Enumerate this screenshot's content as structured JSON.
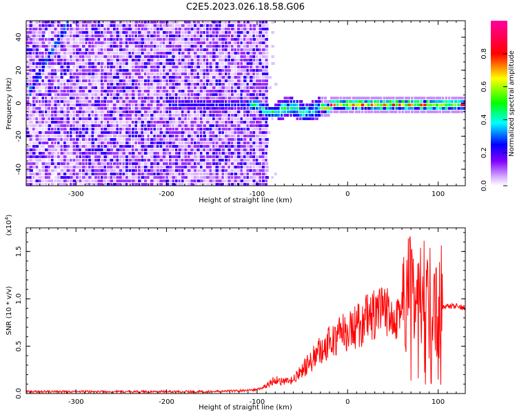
{
  "title": "C2E5.2023.026.18.58.G06",
  "colors": {
    "snr_line": "#ff0000",
    "frame": "#000000",
    "background": "#ffffff"
  },
  "chart_data": [
    {
      "type": "heatmap",
      "xlabel": "Height of straight line (km)",
      "ylabel": "Frequency (Hz)",
      "xlim": [
        -355,
        130
      ],
      "ylim": [
        -50,
        50
      ],
      "x_ticks": [
        -300,
        -200,
        -100,
        0,
        100
      ],
      "y_ticks": [
        -40,
        -20,
        0,
        20,
        40
      ],
      "colorbar": {
        "label": "Normalized spectral amplitude",
        "range": [
          0,
          1
        ],
        "ticks": [
          "0.0",
          "0.2",
          "0.4",
          "0.6",
          "0.8"
        ],
        "colormap": "rainbow (white→purple→blue→cyan→green→yellow→red→magenta)"
      },
      "features": [
        {
          "description": "noise",
          "x_range": [
            -355,
            -90
          ],
          "y_range": [
            -50,
            50
          ],
          "amplitude": 0.15
        },
        {
          "description": "carrier",
          "x_range": [
            -130,
            130
          ],
          "frequency_hz": 0,
          "amplitude": 0.9
        },
        {
          "description": "diagonal",
          "x_range": [
            -350,
            -310
          ],
          "y_range": [
            10,
            50
          ],
          "amplitude": 0.25
        }
      ]
    },
    {
      "type": "line",
      "xlabel": "Height of straight line (km)",
      "ylabel": "SNR (10 * v/v)",
      "y_multiplier": "(x10^4)",
      "y_multiplier_base": "(x10",
      "y_multiplier_exp": "4",
      "y_multiplier_close": ")",
      "xlim": [
        -355,
        130
      ],
      "ylim": [
        0,
        1.75
      ],
      "x_ticks": [
        -300,
        -200,
        -100,
        0,
        100
      ],
      "y_ticks": [
        "0.0",
        "0.5",
        "1.0",
        "1.5"
      ],
      "series": [
        {
          "x": [
            -355,
            -300,
            -250,
            -200,
            -150,
            -120,
            -100,
            -90,
            -80,
            -70,
            -60,
            -50,
            -40,
            -30,
            -20,
            -10,
            0,
            10,
            20,
            30,
            40,
            50,
            60,
            70,
            80,
            90,
            95,
            100,
            105,
            110,
            120,
            130
          ],
          "y": [
            0.02,
            0.02,
            0.02,
            0.02,
            0.02,
            0.03,
            0.04,
            0.08,
            0.15,
            0.12,
            0.14,
            0.25,
            0.35,
            0.45,
            0.55,
            0.6,
            0.65,
            0.7,
            0.78,
            0.82,
            0.85,
            0.87,
            0.88,
            0.88,
            0.87,
            0.86,
            0.8,
            0.7,
            0.9,
            0.92,
            0.92,
            0.91
          ]
        }
      ],
      "grid": false
    }
  ]
}
